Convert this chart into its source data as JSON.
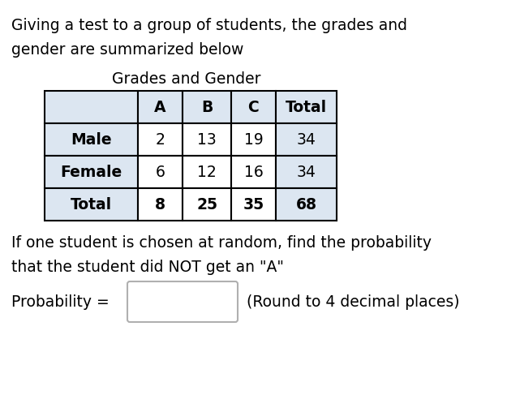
{
  "intro_text_line1": "Giving a test to a group of students, the grades and",
  "intro_text_line2": "gender are summarized below",
  "table_title": "Grades and Gender",
  "col_headers": [
    "",
    "A",
    "B",
    "C",
    "Total"
  ],
  "rows": [
    [
      "Male",
      "2",
      "13",
      "19",
      "34"
    ],
    [
      "Female",
      "6",
      "12",
      "16",
      "34"
    ],
    [
      "Total",
      "8",
      "25",
      "35",
      "68"
    ]
  ],
  "question_line1": "If one student is chosen at random, find the probability",
  "question_line2": "that the student did NOT get an \"A\"",
  "prob_label": "Probability =",
  "round_note": "(Round to 4 decimal places)",
  "header_bg": "#dce6f1",
  "row_label_bg": "#dce6f1",
  "total_col_bg": "#dce6f1",
  "cell_bg": "#ffffff",
  "text_color": "#000000",
  "bg_color": "#ffffff",
  "box_color": "#b0b0b0"
}
